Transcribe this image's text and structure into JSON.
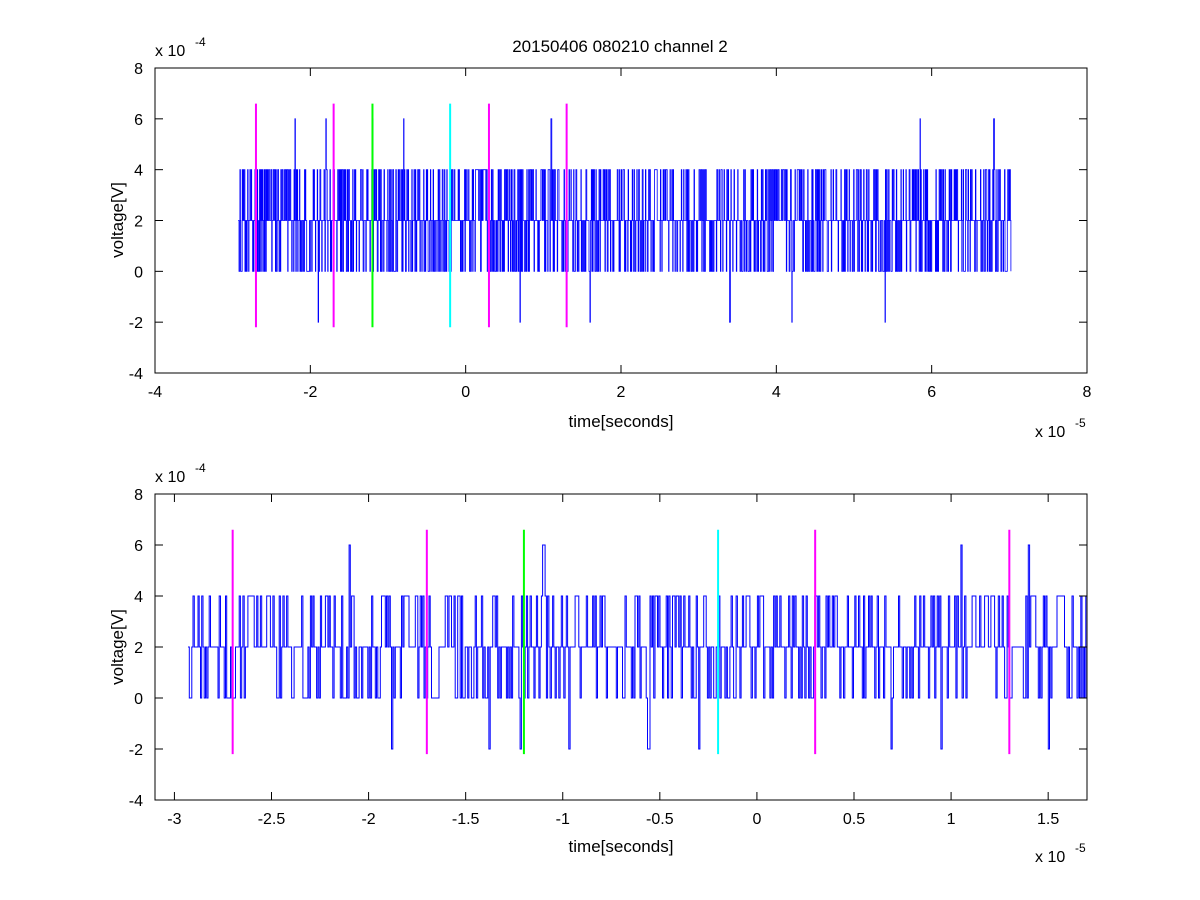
{
  "chart_data": [
    {
      "type": "line",
      "title": "20150406 080210 channel 2",
      "xlabel": "time[seconds]",
      "ylabel": "voltage[V]",
      "x_exponent_label": "x 10",
      "x_exponent": "-5",
      "y_exponent_label": "x 10",
      "y_exponent": "-4",
      "xlim": [
        -4,
        8
      ],
      "ylim": [
        -4,
        8
      ],
      "x_ticks": [
        -4,
        -2,
        0,
        2,
        4,
        6,
        8
      ],
      "x_tick_labels": [
        "-4",
        "-2",
        "0",
        "2",
        "4",
        "6",
        "8"
      ],
      "y_ticks": [
        -4,
        -2,
        0,
        2,
        4,
        6,
        8
      ],
      "y_tick_labels": [
        "-4",
        "-2",
        "0",
        "2",
        "4",
        "6",
        "8"
      ],
      "grid": false,
      "series": [
        {
          "color": "#0000ff",
          "x_range": [
            -2.93,
            7.02
          ],
          "levels": [
            -2,
            0,
            2,
            4,
            6
          ],
          "spikes": [
            {
              "x": -2.2,
              "y": 6
            },
            {
              "x": -1.8,
              "y": 6
            },
            {
              "x": -1.2,
              "y": 6
            },
            {
              "x": -0.8,
              "y": 6
            },
            {
              "x": 1.1,
              "y": 6
            },
            {
              "x": 5.85,
              "y": 6
            },
            {
              "x": 6.8,
              "y": 6
            },
            {
              "x": -1.9,
              "y": -2
            },
            {
              "x": 0.7,
              "y": -2
            },
            {
              "x": 1.6,
              "y": -2
            },
            {
              "x": 3.4,
              "y": -2
            },
            {
              "x": 4.2,
              "y": -2
            },
            {
              "x": 5.4,
              "y": -2
            }
          ]
        }
      ],
      "markers": [
        {
          "x": -2.7,
          "color": "#ff00ff",
          "y_range": [
            -2.2,
            6.6
          ]
        },
        {
          "x": -1.7,
          "color": "#ff00ff",
          "y_range": [
            -2.2,
            6.6
          ]
        },
        {
          "x": -1.2,
          "color": "#00ff00",
          "y_range": [
            -2.2,
            6.6
          ]
        },
        {
          "x": -0.2,
          "color": "#00ffff",
          "y_range": [
            -2.2,
            6.6
          ]
        },
        {
          "x": 0.3,
          "color": "#ff00ff",
          "y_range": [
            -2.2,
            6.6
          ]
        },
        {
          "x": 1.3,
          "color": "#ff00ff",
          "y_range": [
            -2.2,
            6.6
          ]
        }
      ]
    },
    {
      "type": "line",
      "title": "",
      "xlabel": "time[seconds]",
      "ylabel": "voltage[V]",
      "x_exponent_label": "x 10",
      "x_exponent": "-5",
      "y_exponent_label": "x 10",
      "y_exponent": "-4",
      "xlim": [
        -3.1,
        1.7
      ],
      "ylim": [
        -4,
        8
      ],
      "x_ticks": [
        -3,
        -2.5,
        -2,
        -1.5,
        -1,
        -0.5,
        0,
        0.5,
        1,
        1.5
      ],
      "x_tick_labels": [
        "-3",
        "-2.5",
        "-2",
        "-1.5",
        "-1",
        "-0.5",
        "0",
        "0.5",
        "1",
        "1.5"
      ],
      "y_ticks": [
        -4,
        -2,
        0,
        2,
        4,
        6,
        8
      ],
      "y_tick_labels": [
        "-4",
        "-2",
        "0",
        "2",
        "4",
        "6",
        "8"
      ],
      "grid": false,
      "series": [
        {
          "color": "#0000ff",
          "x_range": [
            -2.93,
            1.7
          ],
          "levels": [
            -2,
            0,
            2,
            4,
            6
          ],
          "spikes": [
            {
              "x": -2.1,
              "y": 6
            },
            {
              "x": -1.1,
              "y": 6
            },
            {
              "x": 1.05,
              "y": 6
            },
            {
              "x": 1.4,
              "y": 6
            },
            {
              "x": -1.88,
              "y": -2
            },
            {
              "x": -1.38,
              "y": -2
            },
            {
              "x": -1.22,
              "y": -2
            },
            {
              "x": -0.97,
              "y": -2
            },
            {
              "x": -0.56,
              "y": -2
            },
            {
              "x": -0.3,
              "y": -2
            },
            {
              "x": 0.69,
              "y": -2
            },
            {
              "x": 0.95,
              "y": -2
            },
            {
              "x": 1.5,
              "y": -2
            }
          ]
        }
      ],
      "markers": [
        {
          "x": -2.7,
          "color": "#ff00ff",
          "y_range": [
            -2.2,
            6.6
          ]
        },
        {
          "x": -1.7,
          "color": "#ff00ff",
          "y_range": [
            -2.2,
            6.6
          ]
        },
        {
          "x": -1.2,
          "color": "#00ff00",
          "y_range": [
            -2.2,
            6.6
          ]
        },
        {
          "x": -0.2,
          "color": "#00ffff",
          "y_range": [
            -2.2,
            6.6
          ]
        },
        {
          "x": 0.3,
          "color": "#ff00ff",
          "y_range": [
            -2.2,
            6.6
          ]
        },
        {
          "x": 1.3,
          "color": "#ff00ff",
          "y_range": [
            -2.2,
            6.6
          ]
        }
      ]
    }
  ]
}
